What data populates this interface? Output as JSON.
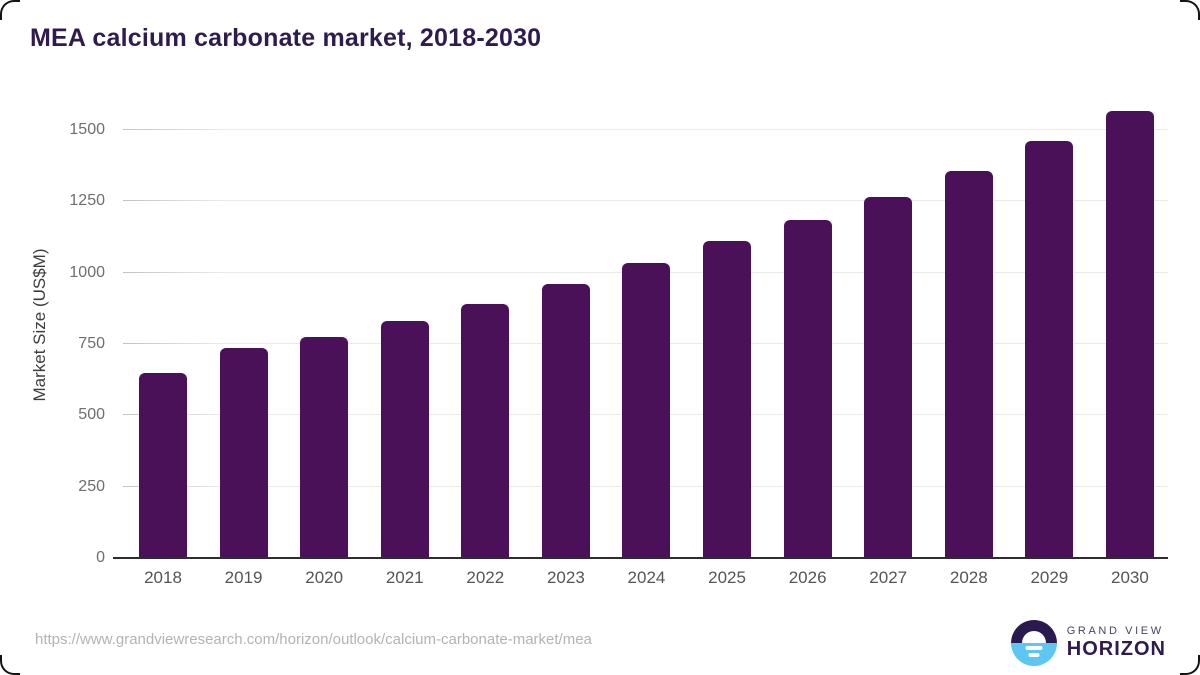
{
  "title": "MEA calcium carbonate market, 2018-2030",
  "footer": {
    "source_url": "https://www.grandviewresearch.com/horizon/outlook/calcium-carbonate-market/mea"
  },
  "logo": {
    "line1": "GRAND VIEW",
    "line2": "HORIZON"
  },
  "colors": {
    "bar": "#4a1159",
    "title": "#2f1b4d",
    "axis_line": "#2d2d2d",
    "tick_label": "#6e6e6e",
    "x_label": "#555555",
    "url_text": "#b3b3b3",
    "logo_dark": "#2b1a4d",
    "logo_blue": "#5ec6f2"
  },
  "chart_data": {
    "type": "bar",
    "title": "MEA calcium carbonate market, 2018-2030",
    "categories": [
      "2018",
      "2019",
      "2020",
      "2021",
      "2022",
      "2023",
      "2024",
      "2025",
      "2026",
      "2027",
      "2028",
      "2029",
      "2030"
    ],
    "values": [
      650,
      735,
      775,
      830,
      890,
      960,
      1035,
      1110,
      1185,
      1265,
      1355,
      1460,
      1565
    ],
    "xlabel": "",
    "ylabel": "Market Size (US$M)",
    "yticks": [
      0,
      250,
      500,
      750,
      1000,
      1250,
      1500
    ],
    "ylim": [
      0,
      1577
    ],
    "grid": true,
    "legend": false
  }
}
